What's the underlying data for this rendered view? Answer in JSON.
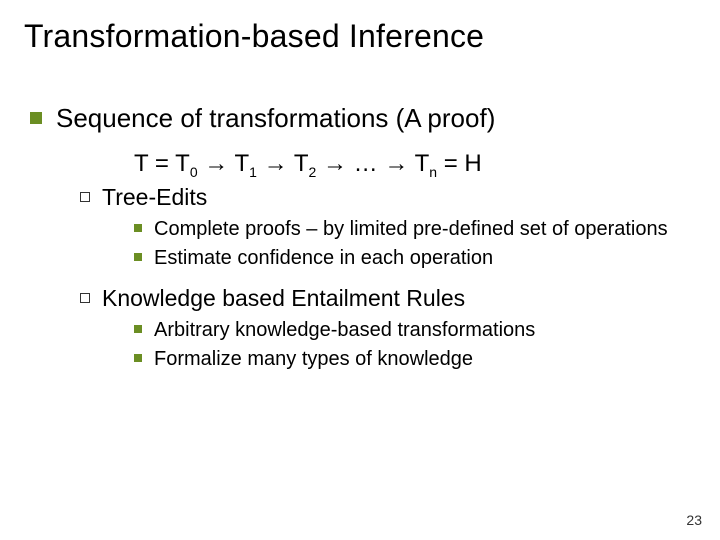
{
  "colors": {
    "accent": "#6b8e23",
    "lvl2_border": "#333333",
    "text": "#000000",
    "background": "#ffffff"
  },
  "title": "Transformation-based Inference",
  "lvl1": {
    "text": "Sequence of transformations (A proof)"
  },
  "formula": {
    "parts": [
      "T = T",
      "0",
      " → T",
      "1",
      " → T",
      "2",
      " → … → T",
      "n",
      " = H"
    ]
  },
  "section1": {
    "heading": "Tree-Edits",
    "items": [
      "Complete proofs – by limited pre-defined set of operations",
      "Estimate confidence in each operation"
    ]
  },
  "section2": {
    "heading": "Knowledge based Entailment Rules",
    "items": [
      "Arbitrary knowledge-based transformations",
      "Formalize many types of knowledge"
    ]
  },
  "page_number": "23"
}
